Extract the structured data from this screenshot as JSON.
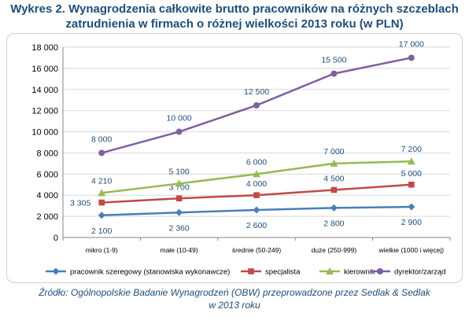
{
  "title_line1": "Wykres 2. Wynagrodzenia całkowite brutto pracowników na różnych szczeblach",
  "title_line2": "zatrudnienia w firmach o różnej wielkości 2013 roku (w PLN)",
  "source_line1": "Źródło: Ogólnopolskie Badanie Wynagrodzeń (OBW) przeprowadzone przez Sedlak & Sedlak",
  "source_line2": "w 2013 roku",
  "chart_data": {
    "type": "line",
    "categories": [
      "mikro (1-9)",
      "małe (10-49)",
      "średnie (50-249)",
      "duże (250-999)",
      "wielkie (1000 i więcej)"
    ],
    "ylim": [
      0,
      18000
    ],
    "yticks": [
      0,
      2000,
      4000,
      6000,
      8000,
      10000,
      12000,
      14000,
      16000,
      18000
    ],
    "ytick_labels": [
      "0",
      "2 000",
      "4 000",
      "6 000",
      "8 000",
      "10 000",
      "12 000",
      "14 000",
      "16 000",
      "18 000"
    ],
    "grid": true,
    "legend_position": "bottom",
    "series": [
      {
        "name": "pracownik szeregowy (stanowiska wykonawcze)",
        "color": "#4a7ebb",
        "marker": "diamond",
        "values": [
          2100,
          2360,
          2600,
          2800,
          2900
        ],
        "labels": [
          "2 100",
          "2 360",
          "2 600",
          "2 800",
          "2 900"
        ]
      },
      {
        "name": "specjalista",
        "color": "#be4b48",
        "marker": "square",
        "values": [
          3305,
          3700,
          4000,
          4500,
          5000
        ],
        "labels": [
          "3 305",
          "3 700",
          "4 000",
          "4 500",
          "5 000"
        ]
      },
      {
        "name": "kierownik",
        "color": "#98b954",
        "marker": "triangle",
        "values": [
          4210,
          5100,
          6000,
          7000,
          7200
        ],
        "labels": [
          "4 210",
          "5 100",
          "6 000",
          "7 000",
          "7 200"
        ]
      },
      {
        "name": "dyrektor/zarząd",
        "color": "#7d60a0",
        "marker": "circle",
        "values": [
          8000,
          10000,
          12500,
          15500,
          17000
        ],
        "labels": [
          "8 000",
          "10 000",
          "12 500",
          "15 500",
          "17 000"
        ]
      }
    ]
  }
}
